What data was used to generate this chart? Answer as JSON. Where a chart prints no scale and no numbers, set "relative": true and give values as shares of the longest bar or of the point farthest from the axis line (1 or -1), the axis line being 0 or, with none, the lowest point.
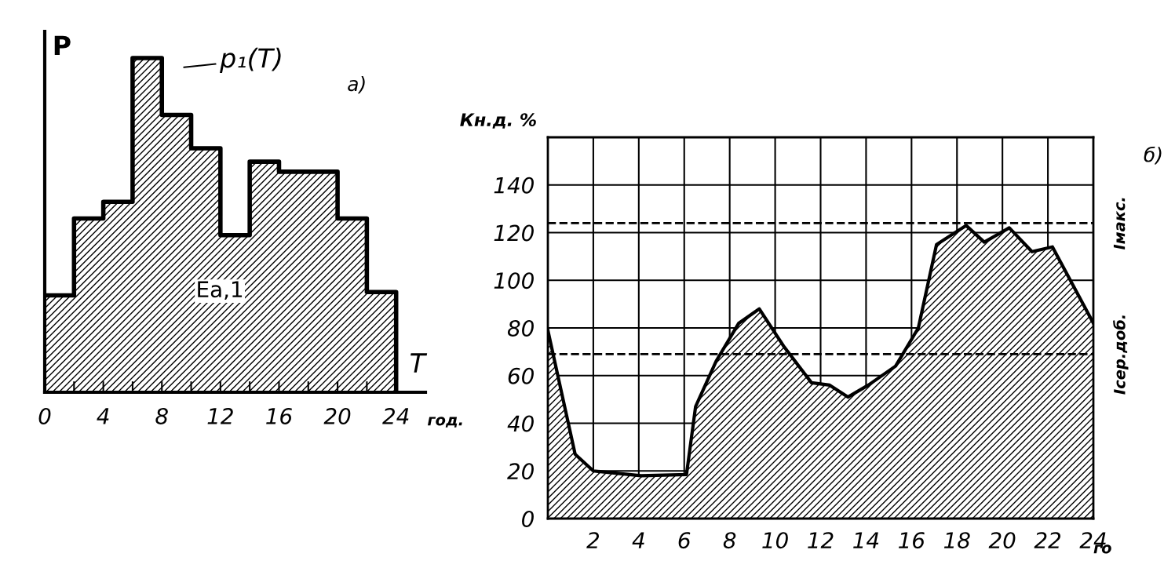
{
  "chart_data": [
    {
      "type": "area",
      "relative": true,
      "xlabel": "T",
      "ylabel": "P",
      "color": "#000000",
      "x": [
        0,
        2,
        2,
        4,
        4,
        6,
        6,
        8,
        8,
        10,
        10,
        12,
        12,
        14,
        14,
        16,
        16,
        20,
        20,
        22,
        22,
        24,
        24
      ],
      "values": [
        0.29,
        0.29,
        0.52,
        0.52,
        0.57,
        0.57,
        1,
        1,
        0.83,
        0.83,
        0.73,
        0.73,
        0.47,
        0.47,
        0.69,
        0.69,
        0.66,
        0.66,
        0.52,
        0.52,
        0.3,
        0.3,
        0
      ],
      "xlim": [
        0,
        26
      ],
      "xticks": [
        0,
        {
          "value": 2,
          "label": null
        },
        4,
        {
          "value": 6,
          "label": null
        },
        8,
        {
          "value": 10,
          "label": null
        },
        12,
        {
          "value": 14,
          "label": null
        },
        16,
        {
          "value": 18,
          "label": null
        },
        20,
        {
          "value": 22,
          "label": null
        },
        24
      ],
      "annotations": [
        "год.",
        "а)",
        "p₁(T)",
        "Ea,1"
      ]
    },
    {
      "type": "area",
      "ylabel": "Кн.д. %",
      "color": "#000000",
      "grid": true,
      "x": [
        0,
        1.2,
        2.0,
        4.1,
        6.1,
        6.5,
        7.4,
        8.4,
        9.3,
        10.4,
        11.6,
        12.4,
        13.2,
        14.1,
        15.3,
        16.3,
        17.1,
        18.4,
        19.2,
        20.3,
        21.3,
        22.2,
        24
      ],
      "values": [
        79,
        27,
        20,
        18,
        18.5,
        47,
        66,
        82,
        88,
        72,
        57,
        56,
        51,
        56,
        64,
        80,
        115,
        123,
        116,
        122,
        112,
        114,
        82
      ],
      "xlim": [
        0,
        24
      ],
      "xticks": [
        2,
        4,
        6,
        8,
        10,
        12,
        14,
        16,
        18,
        20,
        22,
        24
      ],
      "ylim": [
        0,
        160
      ],
      "yticks": [
        0,
        20,
        40,
        60,
        80,
        100,
        120,
        140,
        {
          "value": 160,
          "label": null
        }
      ],
      "ref_lines": [
        {
          "axis": "y",
          "value": 69,
          "label": "Iсер.доб.",
          "line_style": "dashed",
          "color": "#000000"
        },
        {
          "axis": "y",
          "value": 124,
          "label": "Iмакс.",
          "line_style": "dashed",
          "color": "#000000"
        }
      ],
      "annotations": [
        "го",
        "б)"
      ]
    }
  ]
}
